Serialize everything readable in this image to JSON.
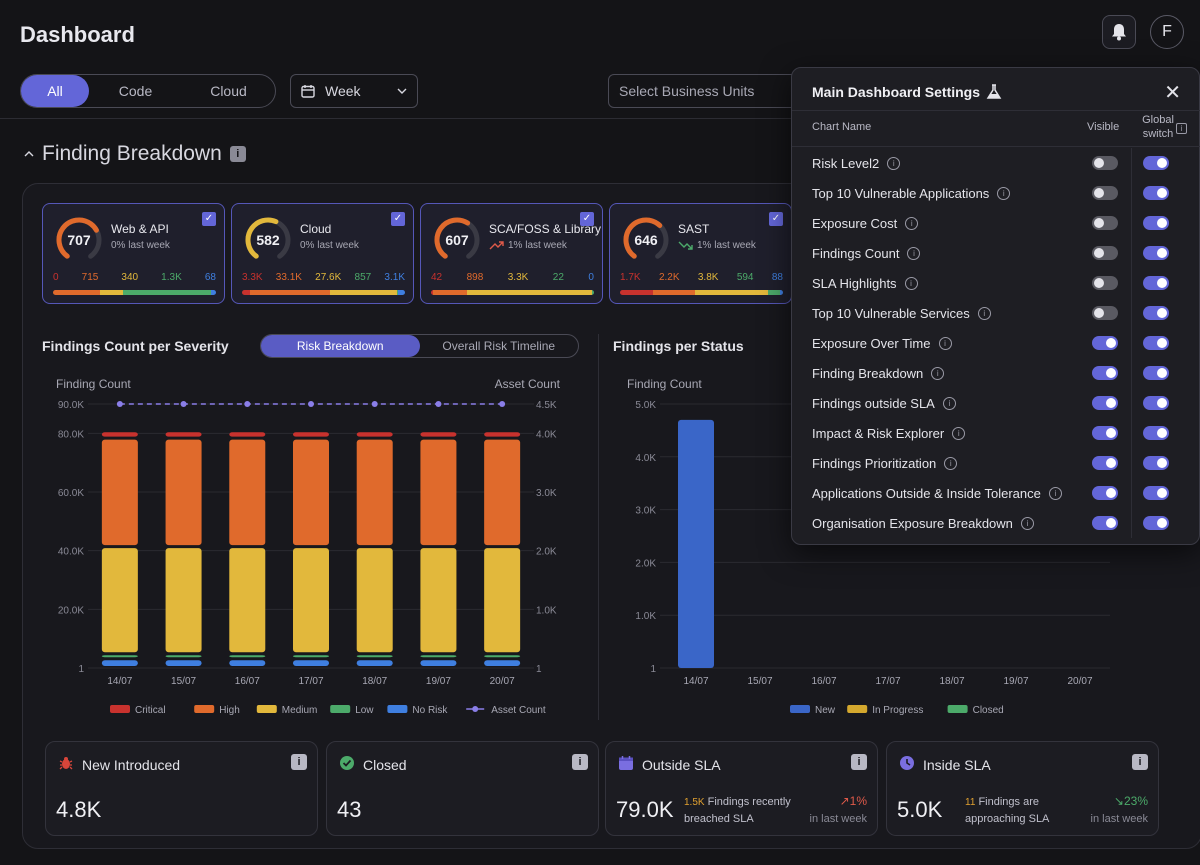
{
  "header": {
    "title": "Dashboard",
    "avatar": "F"
  },
  "filters": {
    "tabs": [
      {
        "label": "All"
      },
      {
        "label": "Code"
      },
      {
        "label": "Cloud"
      }
    ],
    "period": "Week",
    "business_units_placeholder": "Select Business Units"
  },
  "section": {
    "title": "Finding Breakdown"
  },
  "cards": [
    {
      "name": "Web & API",
      "score": "707",
      "trend": "0% last week",
      "trend_arrow": "",
      "nums": [
        "0",
        "715",
        "340",
        "1.3K",
        "68"
      ],
      "gauge_fraction": 0.71,
      "gauge_color": "#e06a2c",
      "bar": [
        0,
        0.29,
        0.14,
        0.54,
        0.03
      ]
    },
    {
      "name": "Cloud",
      "score": "582",
      "trend": "0% last week",
      "trend_arrow": "",
      "nums": [
        "3.3K",
        "33.1K",
        "27.6K",
        "857",
        "3.1K"
      ],
      "gauge_fraction": 0.58,
      "gauge_color": "#e2b83c",
      "bar": [
        0.05,
        0.49,
        0.41,
        0.01,
        0.04
      ]
    },
    {
      "name": "SCA/FOSS & Library",
      "score": "607",
      "trend": "1% last week",
      "trend_arrow": "up-red",
      "nums": [
        "42",
        "898",
        "3.3K",
        "22",
        "0"
      ],
      "gauge_fraction": 0.61,
      "gauge_color": "#e06a2c",
      "bar": [
        0.01,
        0.21,
        0.77,
        0.01,
        0
      ]
    },
    {
      "name": "SAST",
      "score": "646",
      "trend": "1% last week",
      "trend_arrow": "down-green",
      "nums": [
        "1.7K",
        "2.2K",
        "3.8K",
        "594",
        "88"
      ],
      "gauge_fraction": 0.65,
      "gauge_color": "#e06a2c",
      "bar": [
        0.2,
        0.26,
        0.45,
        0.07,
        0.02
      ]
    }
  ],
  "severity_chart": {
    "title": "Findings Count per Severity",
    "toggle": [
      "Risk Breakdown",
      "Overall Risk Timeline"
    ]
  },
  "status_chart": {
    "title": "Findings per Status"
  },
  "chart_data": [
    {
      "type": "bar",
      "title": "Findings Count per Severity",
      "ylabel": "Finding Count",
      "y2label": "Asset Count",
      "categories": [
        "14/07",
        "15/07",
        "16/07",
        "17/07",
        "18/07",
        "19/07",
        "20/07"
      ],
      "y_ticks": [
        "1",
        "20.0K",
        "40.0K",
        "60.0K",
        "80.0K",
        "90.0K"
      ],
      "y2_ticks": [
        "1",
        "1.0K",
        "2.0K",
        "3.0K",
        "4.0K",
        "4.5K"
      ],
      "ylim": [
        0,
        90000
      ],
      "series": [
        {
          "name": "Critical",
          "color": "#c8322e",
          "values": [
            2500,
            2500,
            2500,
            2500,
            2500,
            2500,
            2500
          ]
        },
        {
          "name": "High",
          "color": "#e06a2c",
          "values": [
            37000,
            37000,
            37000,
            37000,
            37000,
            37000,
            37000
          ]
        },
        {
          "name": "Medium",
          "color": "#e2b83c",
          "values": [
            36500,
            36500,
            36500,
            36500,
            36500,
            36500,
            36500
          ]
        },
        {
          "name": "Low",
          "color": "#4caa6a",
          "values": [
            1000,
            1000,
            1000,
            1000,
            1000,
            1000,
            1000
          ]
        },
        {
          "name": "No Risk",
          "color": "#3f7fe0",
          "values": [
            3000,
            3000,
            3000,
            3000,
            3000,
            3000,
            3000
          ]
        },
        {
          "name": "Asset Count",
          "color": "#8a7ee8",
          "type": "line",
          "values": [
            4500,
            4500,
            4500,
            4500,
            4500,
            4500,
            4500
          ]
        }
      ],
      "legend": "bottom"
    },
    {
      "type": "bar",
      "title": "Findings per Status",
      "ylabel": "Finding Count",
      "categories": [
        "14/07",
        "15/07",
        "16/07",
        "17/07",
        "18/07",
        "19/07",
        "20/07"
      ],
      "y_ticks": [
        "1",
        "1.0K",
        "2.0K",
        "3.0K",
        "4.0K",
        "5.0K"
      ],
      "ylim": [
        0,
        5000
      ],
      "series": [
        {
          "name": "New",
          "color": "#3a66c8",
          "values": [
            4700,
            0,
            0,
            0,
            0,
            0,
            0
          ]
        },
        {
          "name": "In Progress",
          "color": "#d4a82e",
          "values": [
            0,
            0,
            0,
            0,
            0,
            0,
            0
          ]
        },
        {
          "name": "Closed",
          "color": "#4caa6a",
          "values": [
            0,
            0,
            0,
            0,
            0,
            0,
            0
          ]
        }
      ],
      "legend": "bottom"
    }
  ],
  "stats": [
    {
      "title": "New Introduced",
      "value": "4.8K",
      "icon": "bug-icon",
      "note_hl": "",
      "note": "",
      "trend": "",
      "trend_sub": ""
    },
    {
      "title": "Closed",
      "value": "43",
      "icon": "check-circle-icon",
      "note_hl": "",
      "note": "",
      "trend": "",
      "trend_sub": ""
    },
    {
      "title": "Outside SLA",
      "value": "79.0K",
      "icon": "calendar-icon",
      "note_hl": "1.5K",
      "note": "Findings recently breached SLA",
      "trend": "1%",
      "trend_sub": "in last week",
      "trend_color": "#e05a4a"
    },
    {
      "title": "Inside SLA",
      "value": "5.0K",
      "icon": "clock-icon",
      "note_hl": "11",
      "note": "Findings are approaching SLA",
      "trend": "23%",
      "trend_sub": "in last week",
      "trend_color": "#4caa6a"
    }
  ],
  "settings": {
    "title": "Main Dashboard Settings",
    "col_chart": "Chart Name",
    "col_visible": "Visible",
    "col_global": "Global switch",
    "rows": [
      {
        "name": "Risk Level2",
        "visible": false,
        "global": true
      },
      {
        "name": "Top 10 Vulnerable Applications",
        "visible": false,
        "global": true
      },
      {
        "name": "Exposure Cost",
        "visible": false,
        "global": true
      },
      {
        "name": "Findings Count",
        "visible": false,
        "global": true
      },
      {
        "name": "SLA Highlights",
        "visible": false,
        "global": true
      },
      {
        "name": "Top 10 Vulnerable Services",
        "visible": false,
        "global": true
      },
      {
        "name": "Exposure Over Time",
        "visible": true,
        "global": true
      },
      {
        "name": "Finding Breakdown",
        "visible": true,
        "global": true
      },
      {
        "name": "Findings outside SLA",
        "visible": true,
        "global": true
      },
      {
        "name": "Impact & Risk Explorer",
        "visible": true,
        "global": true
      },
      {
        "name": "Findings Prioritization",
        "visible": true,
        "global": true
      },
      {
        "name": "Applications Outside & Inside Tolerance",
        "visible": true,
        "global": true
      },
      {
        "name": "Organisation Exposure Breakdown",
        "visible": true,
        "global": true
      }
    ]
  }
}
